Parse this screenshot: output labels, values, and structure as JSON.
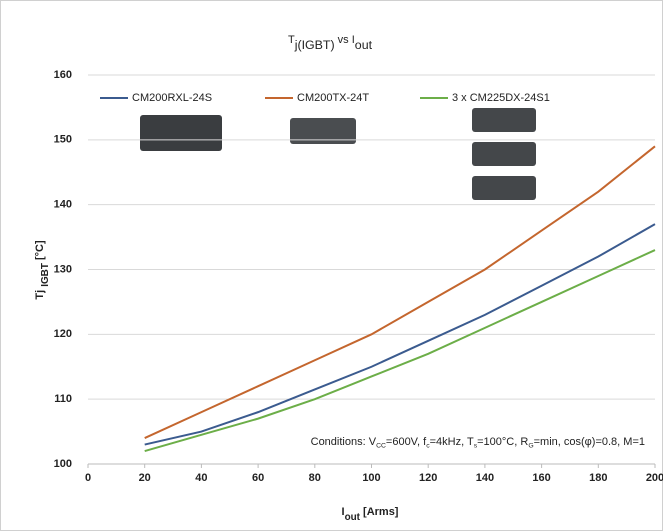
{
  "chart_data": {
    "type": "line",
    "title": [
      "T",
      "j(IGBT)",
      " vs I",
      "out"
    ],
    "ylabel": [
      "Tj ",
      "IGBT",
      " [°C]"
    ],
    "xlabel": [
      "I",
      "out",
      " [Arms]"
    ],
    "annotation": [
      "Conditions:  V",
      "CC",
      "=600V, f",
      "c",
      "=4kHz, T",
      "s",
      "=100°C, R",
      "G",
      "=min, cos(φ)=0.8, M=1"
    ],
    "x": [
      20,
      40,
      60,
      80,
      100,
      120,
      140,
      160,
      180,
      200
    ],
    "series": [
      {
        "name": "CM200RXL-24S",
        "color": "#3b5b8f",
        "values": [
          103,
          105,
          108,
          111.5,
          115,
          119,
          123,
          127.5,
          132,
          137
        ]
      },
      {
        "name": "CM200TX-24T",
        "color": "#c4662e",
        "values": [
          104,
          108,
          112,
          116,
          120,
          125,
          130,
          136,
          142,
          149
        ]
      },
      {
        "name": "3 x CM225DX-24S1",
        "color": "#6cae48",
        "values": [
          102,
          104.5,
          107,
          110,
          113.5,
          117,
          121,
          125,
          129,
          133
        ]
      }
    ],
    "xlim": [
      0,
      200
    ],
    "xticks": [
      0,
      20,
      40,
      60,
      80,
      100,
      120,
      140,
      160,
      180,
      200
    ],
    "ylim": [
      100,
      160
    ],
    "yticks": [
      100,
      110,
      120,
      130,
      140,
      150,
      160
    ],
    "grid": true,
    "legend": "top"
  }
}
